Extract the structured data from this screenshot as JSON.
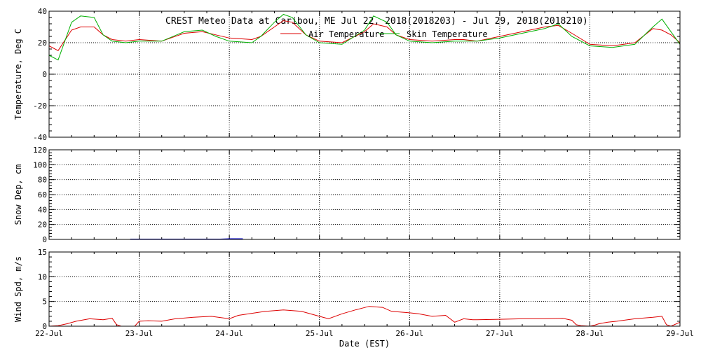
{
  "title": "CREST Meteo Data at Caribou, ME   Jul 22, 2018(2018203) - Jul 29, 2018(2018210)",
  "xlabel": "Date (EST)",
  "x_ticks": [
    "22-Jul",
    "23-Jul",
    "24-Jul",
    "25-Jul",
    "26-Jul",
    "27-Jul",
    "28-Jul",
    "29-Jul"
  ],
  "colors": {
    "air": "#dd0000",
    "skin": "#00b000",
    "snow": "#0000cc",
    "wind": "#dd0000",
    "axis": "#000000"
  },
  "chart_data": [
    {
      "type": "line",
      "ylabel": "Temperature, Deg C",
      "ylim": [
        -40,
        40
      ],
      "y_ticks": [
        -40,
        -20,
        0,
        20,
        40
      ],
      "grid": true,
      "legend": "top-center",
      "x": [
        0,
        0.1,
        0.25,
        0.35,
        0.5,
        0.6,
        0.7,
        0.85,
        1.0,
        1.25,
        1.5,
        1.7,
        1.85,
        2.0,
        2.25,
        2.35,
        2.5,
        2.6,
        2.7,
        2.85,
        3.0,
        3.25,
        3.5,
        3.6,
        3.75,
        3.85,
        4.0,
        4.25,
        4.5,
        4.6,
        4.75,
        5.0,
        5.25,
        5.5,
        5.65,
        5.8,
        6.0,
        6.25,
        6.5,
        6.7,
        6.8,
        6.9,
        7.0
      ],
      "series": [
        {
          "name": "Air Temperature",
          "values": [
            18,
            15,
            28,
            30,
            30,
            25,
            22,
            21,
            22,
            21,
            26,
            27,
            25,
            23,
            22,
            24,
            30,
            34,
            33,
            25,
            21,
            20,
            27,
            32,
            30,
            25,
            22,
            21,
            22,
            22,
            21,
            24,
            27,
            30,
            31,
            26,
            19,
            18,
            20,
            29,
            28,
            25,
            20
          ]
        },
        {
          "name": "Skin Temperature",
          "values": [
            12,
            9,
            33,
            37,
            36,
            25,
            21,
            20,
            21,
            21,
            27,
            28,
            24,
            21,
            20,
            24,
            33,
            38,
            36,
            25,
            20,
            19,
            28,
            37,
            33,
            25,
            21,
            20,
            21,
            21,
            21,
            23,
            26,
            29,
            32,
            24,
            18,
            17,
            19,
            30,
            35,
            27,
            19
          ]
        }
      ]
    },
    {
      "type": "line",
      "ylabel": "Snow Dep, cm",
      "ylim": [
        0,
        120
      ],
      "y_ticks": [
        0,
        20,
        40,
        60,
        80,
        100,
        120
      ],
      "grid": true,
      "x": [
        0.9,
        1.0,
        1.1,
        1.2,
        1.3,
        1.4,
        1.5,
        1.6,
        1.7,
        1.8,
        1.9,
        2.0,
        2.05,
        2.1,
        2.15
      ],
      "series": [
        {
          "values": [
            0,
            0,
            0,
            0,
            0,
            0,
            0,
            0,
            0,
            0,
            0,
            0.5,
            0.5,
            0.5,
            0.5
          ]
        }
      ]
    },
    {
      "type": "line",
      "ylabel": "Wind Spd, m/s",
      "ylim": [
        0,
        15
      ],
      "y_ticks": [
        0,
        5,
        10,
        15
      ],
      "grid": true,
      "x": [
        0,
        0.1,
        0.2,
        0.3,
        0.45,
        0.6,
        0.7,
        0.75,
        0.8,
        0.95,
        1.0,
        1.1,
        1.25,
        1.4,
        1.6,
        1.8,
        2.0,
        2.1,
        2.25,
        2.4,
        2.6,
        2.8,
        3.0,
        3.1,
        3.25,
        3.4,
        3.55,
        3.7,
        3.8,
        4.0,
        4.1,
        4.25,
        4.4,
        4.5,
        4.6,
        4.7,
        4.75,
        5.0,
        5.25,
        5.5,
        5.7,
        5.8,
        5.85,
        5.9,
        6.0,
        6.05,
        6.1,
        6.2,
        6.3,
        6.5,
        6.7,
        6.8,
        6.85,
        6.9,
        7.0
      ],
      "series": [
        {
          "values": [
            0,
            0.1,
            0.5,
            1.0,
            1.5,
            1.3,
            1.6,
            0.3,
            0,
            0,
            1.0,
            1.1,
            1.0,
            1.5,
            1.8,
            2.0,
            1.5,
            2.2,
            2.6,
            3.0,
            3.3,
            3.0,
            2.0,
            1.5,
            2.5,
            3.3,
            4.0,
            3.8,
            3.0,
            2.7,
            2.5,
            2.0,
            2.2,
            0.8,
            1.5,
            1.3,
            1.3,
            1.4,
            1.5,
            1.5,
            1.6,
            1.2,
            0.3,
            0.1,
            0,
            0.2,
            0.5,
            0.8,
            1.0,
            1.5,
            1.8,
            2.0,
            0.3,
            0,
            0.8
          ]
        }
      ]
    }
  ]
}
